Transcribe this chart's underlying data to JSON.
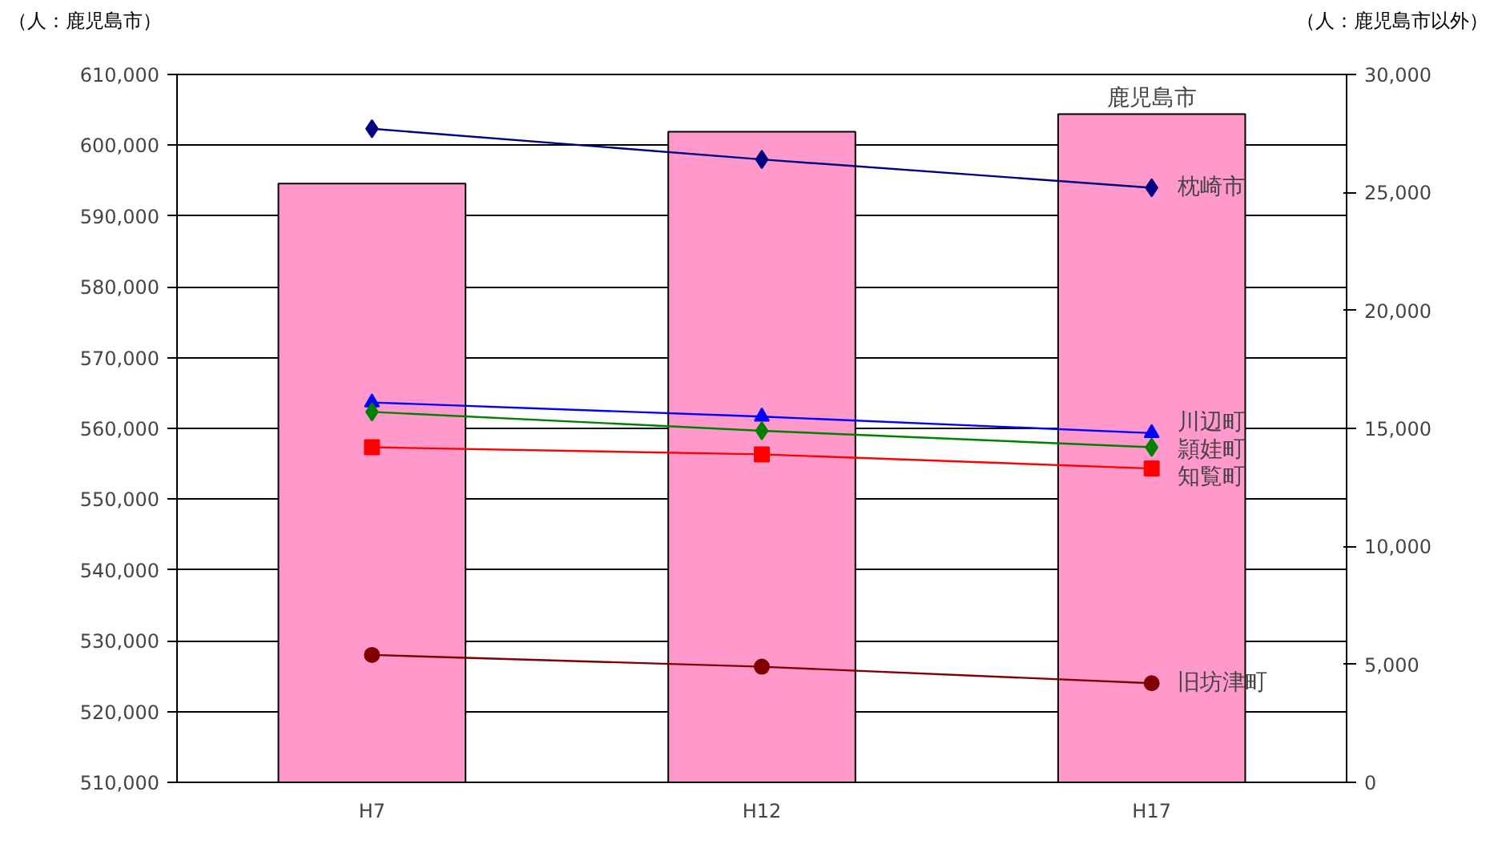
{
  "chart_data": {
    "type": "bar",
    "categories": [
      "H7",
      "H12",
      "H17"
    ],
    "ylabel": "（人：鹿児島市）",
    "y2label": "（人：鹿児島市以外）",
    "ylim": [
      510000,
      610000
    ],
    "yticks": [
      {
        "value": 510000,
        "label": "510,000"
      },
      {
        "value": 520000,
        "label": "520,000"
      },
      {
        "value": 530000,
        "label": "530,000"
      },
      {
        "value": 540000,
        "label": "540,000"
      },
      {
        "value": 550000,
        "label": "550,000"
      },
      {
        "value": 560000,
        "label": "560,000"
      },
      {
        "value": 570000,
        "label": "570,000"
      },
      {
        "value": 580000,
        "label": "580,000"
      },
      {
        "value": 590000,
        "label": "590,000"
      },
      {
        "value": 600000,
        "label": "600,000"
      },
      {
        "value": 610000,
        "label": "610,000"
      }
    ],
    "y2lim": [
      0,
      30000
    ],
    "y2ticks": [
      0,
      {
        "value": 5000,
        "label": "5,000"
      },
      {
        "value": 10000,
        "label": "10,000"
      },
      {
        "value": 15000,
        "label": "15,000"
      },
      {
        "value": 20000,
        "label": "20,000"
      },
      {
        "value": 25000,
        "label": "25,000"
      },
      {
        "value": 30000,
        "label": "30,000"
      }
    ],
    "grid": "y",
    "legend": false,
    "series": [
      {
        "name": "鹿児島市",
        "color": "#ff99cc",
        "values": [
          594600,
          601900,
          604400
        ]
      },
      {
        "name": "枕崎市",
        "type": "line",
        "axis": "y2",
        "marker": "diamond",
        "color": "#000080",
        "values": [
          27700,
          26400,
          25200
        ]
      },
      {
        "name": "川辺町",
        "type": "line",
        "axis": "y2",
        "marker": "triangle",
        "color": "#0000ff",
        "values": [
          16100,
          15500,
          14800
        ]
      },
      {
        "name": "頴娃町",
        "type": "line",
        "axis": "y2",
        "marker": "diamond",
        "color": "#008000",
        "values": [
          15700,
          14900,
          14200
        ]
      },
      {
        "name": "知覧町",
        "type": "line",
        "axis": "y2",
        "marker": "square",
        "color": "#ff0000",
        "values": [
          14200,
          13900,
          13300
        ]
      },
      {
        "name": "旧坊津町",
        "type": "line",
        "axis": "y2",
        "marker": "circle",
        "color": "#800000",
        "values": [
          5400,
          4900,
          4200
        ]
      }
    ]
  }
}
